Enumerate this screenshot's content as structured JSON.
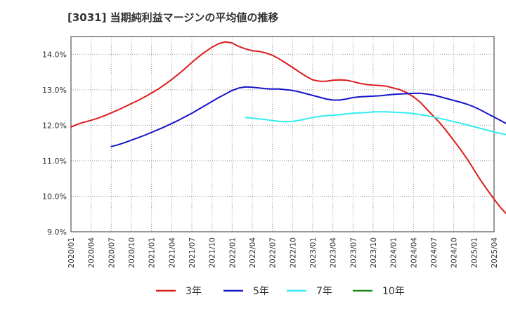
{
  "title": "[3031]  当期純利益マージンの平均値の推移",
  "chart_data": {
    "type": "line",
    "title": "[3031]  当期純利益マージンの平均値の推移",
    "xlabel": "",
    "ylabel": "",
    "ylim": [
      9.0,
      14.5
    ],
    "yticks": [
      "9.0%",
      "10.0%",
      "11.0%",
      "12.0%",
      "13.0%",
      "14.0%"
    ],
    "ytick_values": [
      9.0,
      10.0,
      11.0,
      12.0,
      13.0,
      14.0
    ],
    "xtick_labels": [
      "2020/01",
      "2020/04",
      "2020/07",
      "2020/10",
      "2021/01",
      "2021/04",
      "2021/07",
      "2021/10",
      "2022/01",
      "2022/04",
      "2022/07",
      "2022/10",
      "2023/01",
      "2023/04",
      "2023/07",
      "2023/10",
      "2024/01",
      "2024/04",
      "2024/07",
      "2024/10",
      "2025/01",
      "2025/04"
    ],
    "grid": true,
    "legend_position": "bottom",
    "series": [
      {
        "name": "3年",
        "color": "#dd1c1c",
        "start": "2020/01",
        "values": [
          11.95,
          12.03,
          12.09,
          12.14,
          12.2,
          12.27,
          12.35,
          12.43,
          12.52,
          12.61,
          12.7,
          12.8,
          12.91,
          13.02,
          13.15,
          13.29,
          13.44,
          13.6,
          13.77,
          13.93,
          14.07,
          14.2,
          14.3,
          14.35,
          14.32,
          14.22,
          14.15,
          14.1,
          14.08,
          14.04,
          13.97,
          13.87,
          13.75,
          13.63,
          13.5,
          13.38,
          13.28,
          13.24,
          13.24,
          13.27,
          13.28,
          13.27,
          13.23,
          13.18,
          13.15,
          13.13,
          13.12,
          13.1,
          13.05,
          13.0,
          12.92,
          12.8,
          12.65,
          12.45,
          12.25,
          12.05,
          11.82,
          11.57,
          11.32,
          11.05,
          10.75,
          10.45,
          10.18,
          9.92,
          9.67,
          9.47,
          9.35,
          9.3,
          9.28,
          9.28,
          9.3
        ]
      },
      {
        "name": "5年",
        "color": "#1515c8",
        "start": "2020/07",
        "values": [
          11.4,
          11.45,
          11.51,
          11.58,
          11.65,
          11.72,
          11.8,
          11.88,
          11.96,
          12.05,
          12.14,
          12.24,
          12.34,
          12.45,
          12.56,
          12.67,
          12.78,
          12.88,
          12.98,
          13.05,
          13.08,
          13.07,
          13.05,
          13.03,
          13.02,
          13.02,
          13.0,
          12.98,
          12.94,
          12.89,
          12.84,
          12.79,
          12.74,
          12.71,
          12.71,
          12.74,
          12.78,
          12.8,
          12.81,
          12.82,
          12.83,
          12.85,
          12.87,
          12.88,
          12.89,
          12.9,
          12.9,
          12.88,
          12.85,
          12.8,
          12.75,
          12.7,
          12.65,
          12.59,
          12.52,
          12.43,
          12.33,
          12.23,
          12.13,
          12.03,
          11.93,
          11.84,
          11.75,
          11.66,
          11.58,
          11.51,
          11.47,
          11.43
        ]
      },
      {
        "name": "7年",
        "color": "#33ecf0",
        "start": "2022/03",
        "values": [
          12.22,
          12.2,
          12.18,
          12.16,
          12.13,
          12.11,
          12.1,
          12.11,
          12.14,
          12.18,
          12.22,
          12.25,
          12.27,
          12.28,
          12.3,
          12.32,
          12.34,
          12.35,
          12.36,
          12.38,
          12.38,
          12.38,
          12.37,
          12.36,
          12.35,
          12.33,
          12.3,
          12.27,
          12.23,
          12.19,
          12.15,
          12.1,
          12.06,
          12.01,
          11.96,
          11.91,
          11.86,
          11.81,
          11.77,
          11.73,
          11.7,
          11.68,
          11.67
        ]
      },
      {
        "name": "10年",
        "color": "#1a8a1a",
        "start": "2025/01",
        "values": []
      }
    ]
  }
}
